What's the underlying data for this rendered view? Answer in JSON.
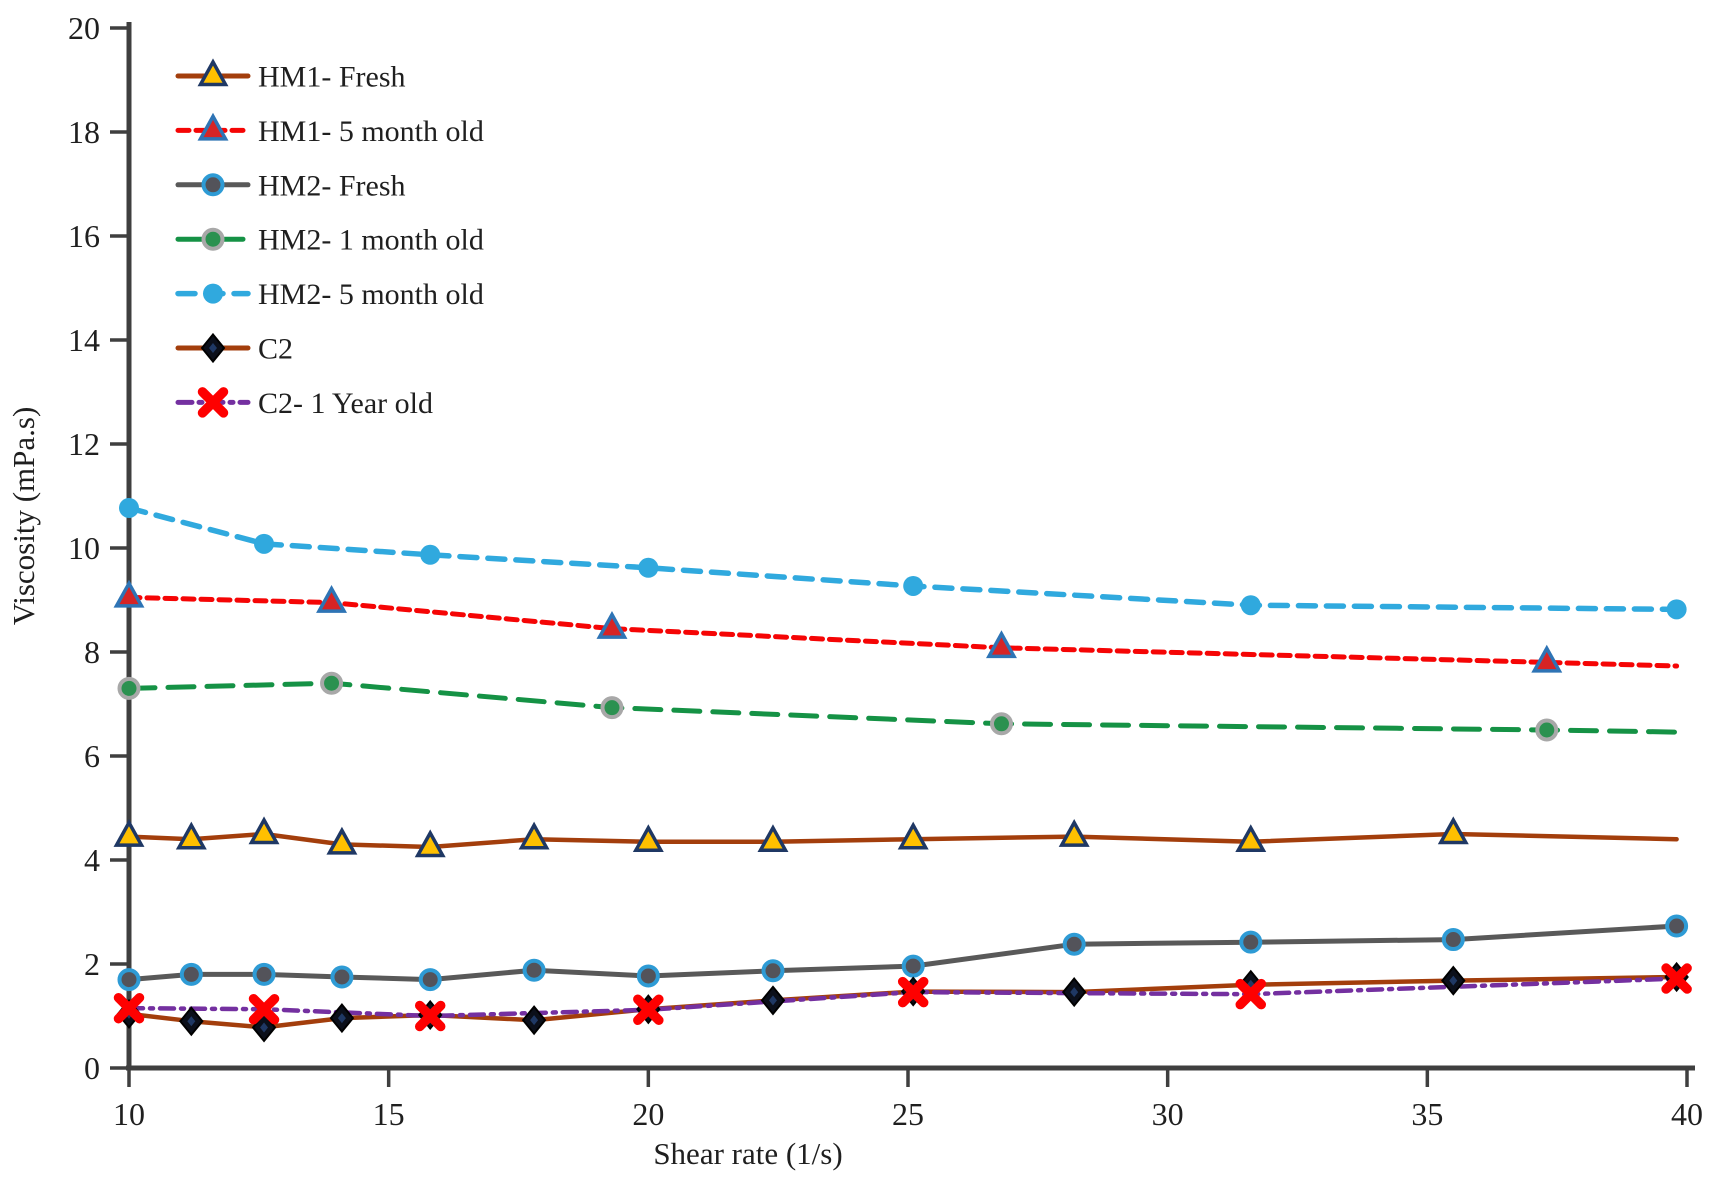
{
  "chart_data": {
    "type": "line",
    "title": "",
    "xlabel": "Shear rate (1/s)",
    "ylabel": "Viscosity (mPa.s)",
    "xlim": [
      10,
      40
    ],
    "ylim": [
      0,
      20
    ],
    "x_ticks": [
      10,
      15,
      20,
      25,
      30,
      35,
      40
    ],
    "y_ticks": [
      0,
      2,
      4,
      6,
      8,
      10,
      12,
      14,
      16,
      18,
      20
    ],
    "grid": false,
    "legend_position": "upper-left-inside",
    "axis_color": "#3f3f3f",
    "text_color": "#1f1f1f",
    "series": [
      {
        "name": "HM1- Fresh",
        "x": [
          10,
          11.2,
          12.6,
          14.1,
          15.8,
          17.8,
          20,
          22.4,
          25.1,
          28.2,
          31.6,
          35.5,
          39.8
        ],
        "y": [
          4.45,
          4.4,
          4.5,
          4.3,
          4.25,
          4.4,
          4.35,
          4.35,
          4.4,
          4.45,
          4.35,
          4.5,
          4.4
        ],
        "line_color": "#A33E0C",
        "line_style": "solid",
        "line_width": 4.5,
        "dash": "",
        "marker": "triangle",
        "marker_fill": "#FFC000",
        "marker_edge": "#1F3864",
        "skip_last_marker": true
      },
      {
        "name": "HM1- 5 month old",
        "x": [
          10,
          13.9,
          19.3,
          26.8,
          37.3,
          39.8
        ],
        "y": [
          9.05,
          8.95,
          8.45,
          8.08,
          7.8,
          7.73
        ],
        "line_color": "#F50505",
        "line_style": "dashed",
        "line_width": 5,
        "dash": "11 7",
        "marker": "triangle",
        "marker_fill": "#D62425",
        "marker_edge": "#2E74B5",
        "skip_last_marker": true
      },
      {
        "name": "HM2- Fresh",
        "x": [
          10,
          11.2,
          12.6,
          14.1,
          15.8,
          17.8,
          20,
          22.4,
          25.1,
          28.2,
          31.6,
          35.5,
          39.8
        ],
        "y": [
          1.7,
          1.8,
          1.8,
          1.75,
          1.7,
          1.88,
          1.77,
          1.87,
          1.96,
          2.38,
          2.42,
          2.47,
          2.73
        ],
        "line_color": "#595959",
        "line_style": "solid",
        "line_width": 5,
        "dash": "",
        "marker": "circle",
        "marker_fill": "#53535A",
        "marker_edge": "#2E9BD5",
        "skip_last_marker": false
      },
      {
        "name": "HM2- 1 month old",
        "x": [
          10,
          13.9,
          19.3,
          26.8,
          37.3,
          39.8
        ],
        "y": [
          7.3,
          7.4,
          6.93,
          6.62,
          6.5,
          6.46
        ],
        "line_color": "#159245",
        "line_style": "long-dash",
        "line_width": 5,
        "dash": "26 13",
        "marker": "circle",
        "marker_fill": "#2B9150",
        "marker_edge": "#A8A8A8",
        "skip_last_marker": true
      },
      {
        "name": "HM2- 5 month old",
        "x": [
          10,
          12.6,
          15.8,
          20,
          25.1,
          31.6,
          39.8
        ],
        "y": [
          10.77,
          10.08,
          9.87,
          9.62,
          9.27,
          8.9,
          8.82
        ],
        "line_color": "#30A9DE",
        "line_style": "dashed",
        "line_width": 5.5,
        "dash": "17 11",
        "marker": "circle",
        "marker_fill": "#30A9DE",
        "marker_edge": "none",
        "skip_last_marker": false
      },
      {
        "name": "C2",
        "x": [
          10,
          11.2,
          12.6,
          14.1,
          15.8,
          17.8,
          20,
          22.4,
          25.1,
          28.2,
          31.6,
          35.5,
          39.8
        ],
        "y": [
          1.04,
          0.9,
          0.78,
          0.96,
          1.02,
          0.92,
          1.13,
          1.3,
          1.47,
          1.46,
          1.6,
          1.68,
          1.75
        ],
        "line_color": "#A33E0C",
        "line_style": "solid",
        "line_width": 4.5,
        "dash": "",
        "marker": "diamond",
        "marker_fill": "#0B0F1A",
        "marker_edge": "#000000",
        "skip_last_marker": false
      },
      {
        "name": "C2- 1 Year old",
        "x": [
          10,
          12.6,
          15.8,
          20,
          25.1,
          31.6,
          39.8
        ],
        "y": [
          1.15,
          1.13,
          1.0,
          1.12,
          1.46,
          1.42,
          1.72
        ],
        "line_color": "#7430A0",
        "line_style": "dash-dot",
        "line_width": 4.5,
        "dash": "14 7 3 7",
        "marker": "x",
        "marker_fill": "#FE0000",
        "marker_edge": "#FE0000",
        "skip_last_marker": false
      }
    ]
  }
}
